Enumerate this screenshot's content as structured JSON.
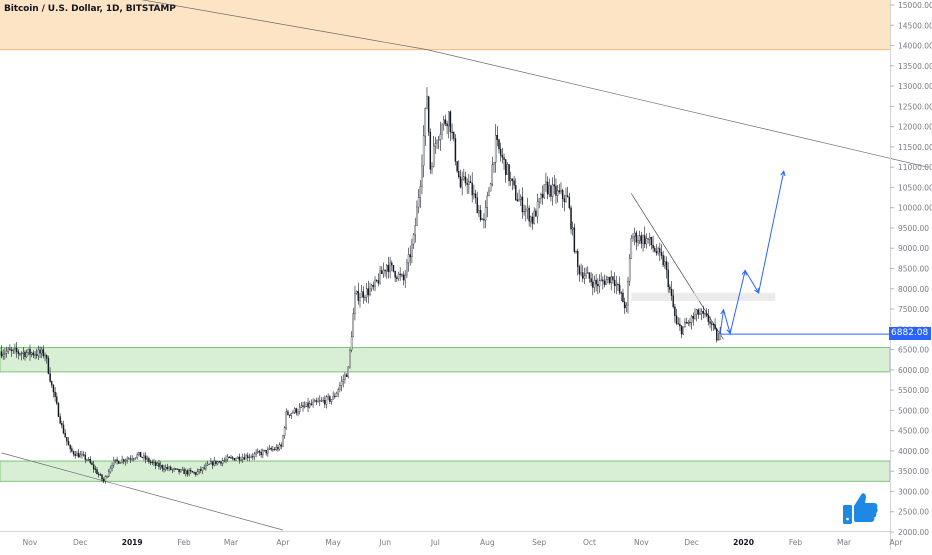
{
  "header": {
    "symbol": "Bitcoin / U.S. Dollar",
    "interval": "1D",
    "exchange": "BITSTAMP"
  },
  "last_price_label": "6882.08",
  "icons": {
    "reaction": "thumbs-up-icon"
  },
  "colors": {
    "up": "#131722",
    "down": "#131722",
    "resistance_zone": "#fde4c4",
    "support_zone": "#d9efd5",
    "support_border": "#7cc47a",
    "forecast_arrow": "#2962ff",
    "last_price": "#2962ff"
  },
  "chart_data": {
    "type": "candlestick",
    "title": "Bitcoin / U.S. Dollar, 1D, BITSTAMP",
    "x_ticks": [
      "Nov",
      "Dec",
      "2019",
      "Feb",
      "Mar",
      "Apr",
      "May",
      "Jun",
      "Jul",
      "Aug",
      "Sep",
      "Oct",
      "Nov",
      "Dec",
      "2020",
      "Feb",
      "Mar",
      "Apr"
    ],
    "y_ticks": [
      "15000.00",
      "14500.00",
      "14000.00",
      "13500.00",
      "13000.00",
      "12500.00",
      "12000.00",
      "11500.00",
      "11000.00",
      "10500.00",
      "10000.00",
      "9500.00",
      "9000.00",
      "8500.00",
      "8000.00",
      "7500.00",
      "7000.00",
      "6500.00",
      "6000.00",
      "5500.00",
      "5000.00",
      "4500.00",
      "4000.00",
      "3500.00",
      "3000.00",
      "2500.00",
      "2000.00"
    ],
    "ylim": [
      2000,
      15000
    ],
    "price_path": [
      [
        "2018-10-15",
        6450
      ],
      [
        "2018-11-10",
        6400
      ],
      [
        "2018-11-14",
        5600
      ],
      [
        "2018-11-20",
        4600
      ],
      [
        "2018-11-25",
        4000
      ],
      [
        "2018-12-05",
        3800
      ],
      [
        "2018-12-15",
        3250
      ],
      [
        "2018-12-20",
        3700
      ],
      [
        "2018-12-28",
        3800
      ],
      [
        "2019-01-05",
        3900
      ],
      [
        "2019-01-15",
        3650
      ],
      [
        "2019-01-28",
        3500
      ],
      [
        "2019-02-08",
        3450
      ],
      [
        "2019-02-18",
        3700
      ],
      [
        "2019-02-28",
        3800
      ],
      [
        "2019-03-15",
        3900
      ],
      [
        "2019-03-31",
        4100
      ],
      [
        "2019-04-03",
        4900
      ],
      [
        "2019-04-15",
        5100
      ],
      [
        "2019-05-01",
        5300
      ],
      [
        "2019-05-10",
        6000
      ],
      [
        "2019-05-14",
        7800
      ],
      [
        "2019-05-25",
        8000
      ],
      [
        "2019-06-02",
        8600
      ],
      [
        "2019-06-12",
        8200
      ],
      [
        "2019-06-18",
        9200
      ],
      [
        "2019-06-22",
        10700
      ],
      [
        "2019-06-26",
        12800
      ],
      [
        "2019-06-28",
        11000
      ],
      [
        "2019-07-02",
        11800
      ],
      [
        "2019-07-09",
        12300
      ],
      [
        "2019-07-16",
        10500
      ],
      [
        "2019-07-20",
        10700
      ],
      [
        "2019-07-30",
        9600
      ],
      [
        "2019-08-06",
        11600
      ],
      [
        "2019-08-12",
        11000
      ],
      [
        "2019-08-18",
        10300
      ],
      [
        "2019-08-28",
        9700
      ],
      [
        "2019-09-05",
        10500
      ],
      [
        "2019-09-18",
        10200
      ],
      [
        "2019-09-24",
        8500
      ],
      [
        "2019-10-05",
        8100
      ],
      [
        "2019-10-15",
        8300
      ],
      [
        "2019-10-23",
        7500
      ],
      [
        "2019-10-26",
        9300
      ],
      [
        "2019-11-05",
        9200
      ],
      [
        "2019-11-15",
        8600
      ],
      [
        "2019-11-22",
        7100
      ],
      [
        "2019-11-25",
        7000
      ],
      [
        "2019-12-05",
        7400
      ],
      [
        "2019-12-12",
        7200
      ],
      [
        "2019-12-17",
        6700
      ],
      [
        "2019-12-18",
        6882
      ]
    ],
    "annotations": {
      "resistance_zone": [
        13900,
        15000
      ],
      "support_zones": [
        [
          5950,
          6550
        ],
        [
          3250,
          3750
        ]
      ],
      "downtrend_line": [
        [
          "2018-07-01",
          16500
        ],
        [
          "2019-06-26",
          13900
        ],
        [
          "2020-04-20",
          11000
        ]
      ],
      "lower_trend_line": [
        [
          "2018-10-15",
          3950
        ],
        [
          "2019-04-01",
          2050
        ]
      ],
      "local_downtrend": [
        [
          "2019-10-26",
          10350
        ],
        [
          "2019-12-20",
          6750
        ]
      ],
      "forecast_path": [
        [
          "2019-12-18",
          6882
        ],
        [
          "2019-12-20",
          7480
        ],
        [
          "2019-12-24",
          6900
        ],
        [
          "2020-01-02",
          8450
        ],
        [
          "2020-01-10",
          7900
        ],
        [
          "2020-01-25",
          10900
        ]
      ],
      "horizontal_line": 6882.08
    }
  }
}
